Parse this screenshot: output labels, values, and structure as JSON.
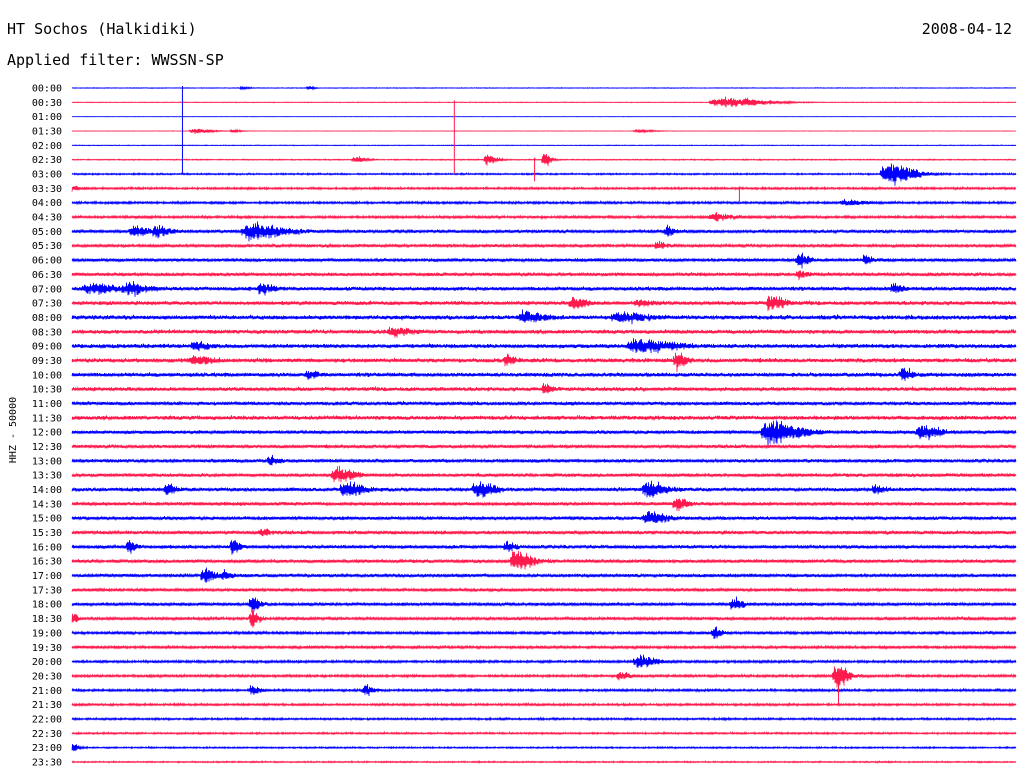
{
  "header": {
    "station": "HT Sochos (Halkidiki)",
    "date": "2008-04-12",
    "filter": "Applied filter: WWSSN-SP",
    "ylabel": "HHZ - 50000"
  },
  "colors": {
    "even_rows": "#0000ff",
    "odd_rows": "#ff1a4d"
  },
  "chart_data": {
    "type": "line",
    "title": "HT Sochos (Halkidiki)",
    "subtitle": "Applied filter: WWSSN-SP",
    "ylabel": "HHZ - 50000",
    "xlabel": "",
    "row_labels": [
      "00:00",
      "00:30",
      "01:00",
      "01:30",
      "02:00",
      "02:30",
      "03:00",
      "03:30",
      "04:00",
      "04:30",
      "05:00",
      "05:30",
      "06:00",
      "06:30",
      "07:00",
      "07:30",
      "08:00",
      "08:30",
      "09:00",
      "09:30",
      "10:00",
      "10:30",
      "11:00",
      "11:30",
      "12:00",
      "12:30",
      "13:00",
      "13:30",
      "14:00",
      "14:30",
      "15:00",
      "15:30",
      "16:00",
      "16:30",
      "17:00",
      "17:30",
      "18:00",
      "18:30",
      "19:00",
      "19:30",
      "20:00",
      "20:30",
      "21:00",
      "21:30",
      "22:00",
      "22:30",
      "23:00",
      "23:30"
    ],
    "row_colors": "alternating blue / red, starting blue",
    "noise_level": [
      0.4,
      0.4,
      0.2,
      0.2,
      0.4,
      0.6,
      0.9,
      1.2,
      1.3,
      1.4,
      1.8,
      1.6,
      1.8,
      2.0,
      2.2,
      2.2,
      2.4,
      2.3,
      2.4,
      2.4,
      2.3,
      2.2,
      2.0,
      2.4,
      2.0,
      1.9,
      1.9,
      1.9,
      2.1,
      2.0,
      2.0,
      2.0,
      1.9,
      1.9,
      1.9,
      1.7,
      1.7,
      1.6,
      1.5,
      1.5,
      1.4,
      1.4,
      1.3,
      1.2,
      1.1,
      1.0,
      0.9,
      0.8
    ],
    "events": [
      {
        "row": 0,
        "x": 0.18,
        "amp": 1.5,
        "width": 0.008
      },
      {
        "row": 0,
        "x": 0.25,
        "amp": 2,
        "width": 0.006
      },
      {
        "row": 1,
        "x": 0.69,
        "amp": 6,
        "width": 0.05
      },
      {
        "row": 3,
        "x": 0.13,
        "amp": 3,
        "width": 0.02
      },
      {
        "row": 3,
        "x": 0.17,
        "amp": 2,
        "width": 0.01
      },
      {
        "row": 3,
        "x": 0.6,
        "amp": 1.5,
        "width": 0.02
      },
      {
        "row": 5,
        "x": 0.3,
        "amp": 3,
        "width": 0.012
      },
      {
        "row": 5,
        "x": 0.44,
        "amp": 6,
        "width": 0.012
      },
      {
        "row": 5,
        "x": 0.5,
        "amp": 9,
        "width": 0.008
      },
      {
        "row": 6,
        "x": 0.865,
        "amp": 12,
        "width": 0.03
      },
      {
        "row": 7,
        "x": 0.0,
        "amp": 2.5,
        "width": 0.01
      },
      {
        "row": 8,
        "x": 0.82,
        "amp": 3,
        "width": 0.02
      },
      {
        "row": 9,
        "x": 0.68,
        "amp": 4,
        "width": 0.02
      },
      {
        "row": 10,
        "x": 0.065,
        "amp": 7,
        "width": 0.015
      },
      {
        "row": 10,
        "x": 0.09,
        "amp": 6,
        "width": 0.015
      },
      {
        "row": 10,
        "x": 0.19,
        "amp": 9,
        "width": 0.035
      },
      {
        "row": 10,
        "x": 0.63,
        "amp": 6,
        "width": 0.01
      },
      {
        "row": 11,
        "x": 0.62,
        "amp": 4,
        "width": 0.01
      },
      {
        "row": 12,
        "x": 0.77,
        "amp": 8,
        "width": 0.012
      },
      {
        "row": 12,
        "x": 0.84,
        "amp": 4,
        "width": 0.01
      },
      {
        "row": 13,
        "x": 0.77,
        "amp": 4,
        "width": 0.01
      },
      {
        "row": 14,
        "x": 0.02,
        "amp": 5,
        "width": 0.03
      },
      {
        "row": 14,
        "x": 0.06,
        "amp": 6,
        "width": 0.02
      },
      {
        "row": 14,
        "x": 0.2,
        "amp": 5,
        "width": 0.015
      },
      {
        "row": 14,
        "x": 0.87,
        "amp": 5,
        "width": 0.01
      },
      {
        "row": 15,
        "x": 0.53,
        "amp": 6,
        "width": 0.015
      },
      {
        "row": 15,
        "x": 0.6,
        "amp": 4,
        "width": 0.015
      },
      {
        "row": 15,
        "x": 0.74,
        "amp": 9,
        "width": 0.015
      },
      {
        "row": 16,
        "x": 0.48,
        "amp": 6,
        "width": 0.02
      },
      {
        "row": 16,
        "x": 0.58,
        "amp": 5,
        "width": 0.03
      },
      {
        "row": 17,
        "x": 0.34,
        "amp": 4,
        "width": 0.02
      },
      {
        "row": 18,
        "x": 0.13,
        "amp": 4,
        "width": 0.015
      },
      {
        "row": 18,
        "x": 0.6,
        "amp": 7,
        "width": 0.04
      },
      {
        "row": 19,
        "x": 0.13,
        "amp": 4,
        "width": 0.02
      },
      {
        "row": 19,
        "x": 0.46,
        "amp": 5,
        "width": 0.01
      },
      {
        "row": 19,
        "x": 0.64,
        "amp": 9,
        "width": 0.01
      },
      {
        "row": 20,
        "x": 0.25,
        "amp": 4,
        "width": 0.01
      },
      {
        "row": 20,
        "x": 0.88,
        "amp": 6,
        "width": 0.012
      },
      {
        "row": 21,
        "x": 0.5,
        "amp": 6,
        "width": 0.008
      },
      {
        "row": 24,
        "x": 0.74,
        "amp": 12,
        "width": 0.035
      },
      {
        "row": 24,
        "x": 0.9,
        "amp": 8,
        "width": 0.02
      },
      {
        "row": 26,
        "x": 0.21,
        "amp": 5,
        "width": 0.01
      },
      {
        "row": 27,
        "x": 0.28,
        "amp": 8,
        "width": 0.02
      },
      {
        "row": 28,
        "x": 0.1,
        "amp": 6,
        "width": 0.01
      },
      {
        "row": 28,
        "x": 0.29,
        "amp": 8,
        "width": 0.02
      },
      {
        "row": 28,
        "x": 0.43,
        "amp": 8,
        "width": 0.02
      },
      {
        "row": 28,
        "x": 0.61,
        "amp": 9,
        "width": 0.02
      },
      {
        "row": 28,
        "x": 0.85,
        "amp": 5,
        "width": 0.01
      },
      {
        "row": 29,
        "x": 0.64,
        "amp": 7,
        "width": 0.012
      },
      {
        "row": 30,
        "x": 0.61,
        "amp": 7,
        "width": 0.02
      },
      {
        "row": 31,
        "x": 0.2,
        "amp": 4,
        "width": 0.01
      },
      {
        "row": 32,
        "x": 0.06,
        "amp": 7,
        "width": 0.008
      },
      {
        "row": 32,
        "x": 0.17,
        "amp": 9,
        "width": 0.008
      },
      {
        "row": 32,
        "x": 0.46,
        "amp": 5,
        "width": 0.01
      },
      {
        "row": 33,
        "x": 0.47,
        "amp": 10,
        "width": 0.02
      },
      {
        "row": 34,
        "x": 0.14,
        "amp": 8,
        "width": 0.012
      },
      {
        "row": 34,
        "x": 0.16,
        "amp": 5,
        "width": 0.01
      },
      {
        "row": 36,
        "x": 0.19,
        "amp": 8,
        "width": 0.01
      },
      {
        "row": 36,
        "x": 0.7,
        "amp": 6,
        "width": 0.012
      },
      {
        "row": 37,
        "x": 0.0,
        "amp": 8,
        "width": 0.006
      },
      {
        "row": 37,
        "x": 0.19,
        "amp": 10,
        "width": 0.008
      },
      {
        "row": 38,
        "x": 0.68,
        "amp": 6,
        "width": 0.01
      },
      {
        "row": 40,
        "x": 0.6,
        "amp": 7,
        "width": 0.02
      },
      {
        "row": 41,
        "x": 0.58,
        "amp": 5,
        "width": 0.01
      },
      {
        "row": 41,
        "x": 0.81,
        "amp": 12,
        "width": 0.015
      },
      {
        "row": 42,
        "x": 0.19,
        "amp": 5,
        "width": 0.01
      },
      {
        "row": 42,
        "x": 0.31,
        "amp": 5,
        "width": 0.01
      },
      {
        "row": 46,
        "x": 0.0,
        "amp": 5,
        "width": 0.008
      }
    ],
    "spikes": [
      {
        "row": 0,
        "x": 0.117,
        "extent": 6
      },
      {
        "row": 1,
        "x": 0.405,
        "extent": 5
      },
      {
        "row": 5,
        "x": 0.49,
        "extent": 1.5
      },
      {
        "row": 7,
        "x": 0.707,
        "extent": 1
      },
      {
        "row": 41,
        "x": 0.812,
        "extent": 2
      }
    ]
  }
}
